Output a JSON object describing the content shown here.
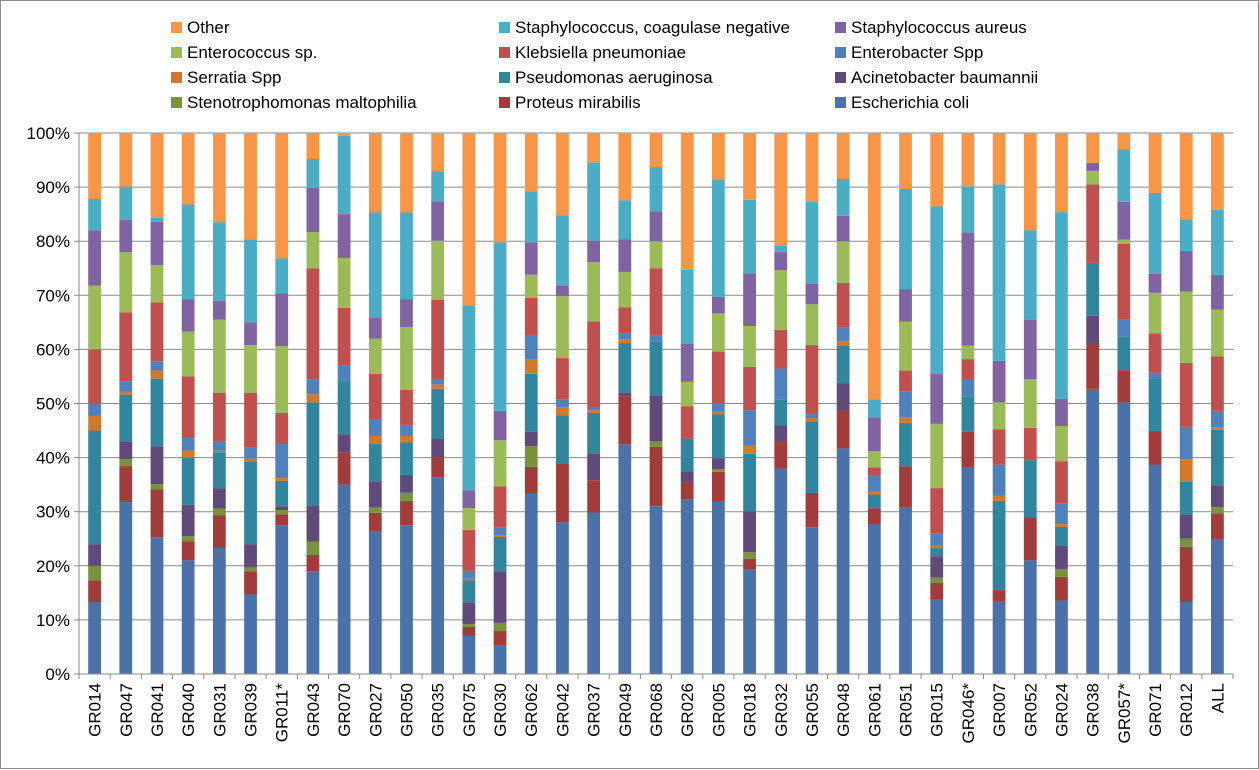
{
  "chart_data": {
    "type": "bar",
    "stacked": "percent",
    "title": "",
    "xlabel": "",
    "ylabel": "",
    "ylim": [
      0,
      100
    ],
    "y_tick_labels": [
      "0%",
      "10%",
      "20%",
      "30%",
      "40%",
      "50%",
      "60%",
      "70%",
      "80%",
      "90%",
      "100%"
    ],
    "grid": "horizontal",
    "legend_position": "top",
    "categories": [
      "GR014",
      "GR047",
      "GR041",
      "GR040",
      "GR031",
      "GR039",
      "GR011*",
      "GR043",
      "GR070",
      "GR027",
      "GR050",
      "GR035",
      "GR075",
      "GR030",
      "GR062",
      "GR042",
      "GR037",
      "GR049",
      "GR068",
      "GR026",
      "GR005",
      "GR018",
      "GR032",
      "GR055",
      "GR048",
      "GR061",
      "GR051",
      "GR015",
      "GR046*",
      "GR007",
      "GR052",
      "GR024",
      "GR038",
      "GR057*",
      "GR071",
      "GR012",
      "ALL"
    ],
    "series": [
      {
        "name": "Escherichia coli",
        "color": "#4A72A8",
        "values": [
          13.3,
          32,
          25.3,
          21,
          23.3,
          14.7,
          27.5,
          19,
          35,
          26.3,
          27.5,
          36,
          7,
          5.2,
          33.3,
          27.7,
          30,
          42,
          31,
          32.3,
          31.5,
          19.2,
          39.7,
          27,
          41.7,
          27.5,
          30.7,
          14,
          38.3,
          13.5,
          21,
          14,
          52.7,
          50.5,
          38.8,
          13.3,
          24.7
        ]
      },
      {
        "name": "Proteus mirabilis",
        "color": "#A23C3A",
        "values": [
          4,
          6.7,
          8.8,
          3.5,
          6,
          4.3,
          2,
          3,
          6,
          3.5,
          4.5,
          3.7,
          1.7,
          2.7,
          5,
          10.8,
          6,
          8.8,
          11,
          3.2,
          5.5,
          2,
          5.3,
          6.3,
          7,
          3,
          7.5,
          3,
          6.7,
          2,
          8,
          4.5,
          8.5,
          6,
          6.2,
          10.2,
          4.8
        ]
      },
      {
        "name": "Stenotrophomonas maltophilia",
        "color": "#77933C",
        "values": [
          2.7,
          1.3,
          1,
          1,
          1.3,
          0.7,
          0.8,
          2.5,
          0,
          1,
          1.5,
          0,
          0.5,
          1.5,
          3.8,
          0,
          0,
          0,
          1,
          0,
          0.5,
          1.2,
          0,
          0,
          0,
          0,
          0,
          1,
          0,
          0,
          0,
          1.5,
          0,
          0,
          0,
          1.5,
          1.2
        ]
      },
      {
        "name": "Acinetobacter baumannii",
        "color": "#5F4A7A",
        "values": [
          4,
          3.3,
          7,
          5.8,
          3.7,
          4.3,
          0.7,
          6.7,
          3.3,
          4.7,
          3.3,
          3.3,
          4,
          9.5,
          2.7,
          0,
          5,
          0.7,
          8.5,
          2,
          2,
          7.5,
          3,
          0,
          5,
          0,
          0,
          4,
          0,
          0,
          0,
          4.5,
          5,
          0,
          0,
          4.5,
          4
        ]
      },
      {
        "name": "Pseudomonas aeruginosa",
        "color": "#31859C",
        "values": [
          21,
          8.7,
          12.5,
          8.7,
          6.7,
          15.3,
          4.7,
          19,
          10,
          7,
          6,
          9.2,
          4,
          6.3,
          10.7,
          8.7,
          7.5,
          9,
          10,
          6,
          8,
          10.6,
          5,
          13.2,
          7,
          2.5,
          8,
          1.5,
          6.6,
          16.5,
          10.5,
          3.5,
          9.8,
          6.2,
          9.8,
          6,
          10.2
        ]
      },
      {
        "name": "Serratia Spp",
        "color": "#D2782A",
        "values": [
          2.7,
          0.5,
          1.5,
          1.3,
          0.3,
          0.5,
          0.5,
          1.5,
          0,
          1.5,
          1.2,
          0.8,
          0.3,
          0.3,
          2.7,
          1.5,
          0.5,
          0.7,
          0,
          0,
          0.5,
          1.5,
          0,
          0.5,
          0.8,
          0.5,
          1,
          0.5,
          0,
          1,
          0,
          0.5,
          0,
          0,
          0,
          4.2,
          0.5
        ]
      },
      {
        "name": "Enterobacter Spp",
        "color": "#4F81BD",
        "values": [
          2.3,
          2,
          1.7,
          2.3,
          1.7,
          2,
          6.3,
          2.7,
          2.7,
          3,
          2,
          1,
          1.5,
          1.5,
          4.3,
          1.5,
          0.5,
          1,
          1,
          0,
          1.5,
          6.5,
          6,
          1,
          2.5,
          3,
          4.8,
          2.3,
          3,
          5.7,
          0,
          4,
          0,
          3.3,
          1,
          6,
          3
        ]
      },
      {
        "name": "Klebsiella pneumoniae",
        "color": "#C0504D",
        "values": [
          10,
          12.8,
          10.9,
          11.4,
          9,
          10.2,
          5.8,
          20.6,
          10.7,
          8.5,
          6.5,
          14.5,
          7.5,
          7.5,
          7,
          7.5,
          16,
          4.8,
          12.5,
          6,
          9.5,
          8,
          7.5,
          12.5,
          8.3,
          1.5,
          3.8,
          8.4,
          3.9,
          6.5,
          6,
          8,
          14.5,
          14,
          7.3,
          11.8,
          10
        ]
      },
      {
        "name": "Enterococcus sp.",
        "color": "#9BBB59",
        "values": [
          11.8,
          11.2,
          6.9,
          8.3,
          13.5,
          8.8,
          12.3,
          6.7,
          9.2,
          6.5,
          11.6,
          10.8,
          4,
          8.5,
          4.3,
          11.3,
          11,
          6.5,
          5,
          4.5,
          7,
          7.5,
          11.5,
          7.5,
          7.7,
          3,
          9,
          12,
          2.5,
          5,
          9,
          6.7,
          2.5,
          0.8,
          7.5,
          13.2,
          8.6
        ]
      },
      {
        "name": "Staphylococcus aureus",
        "color": "#8064A2",
        "values": [
          10.2,
          6,
          8,
          6,
          3.5,
          4.2,
          9.8,
          8.2,
          8.1,
          3.8,
          5.2,
          7.2,
          3.3,
          5.4,
          6,
          2,
          4,
          6,
          5.5,
          7,
          3,
          9.7,
          3.5,
          3.8,
          4.7,
          6.2,
          6,
          9.3,
          21,
          7.7,
          11,
          5.2,
          1.5,
          7,
          3.5,
          7.5,
          6.4
        ]
      },
      {
        "name": "Staphylococcus, coagulase negative",
        "color": "#4BACC6",
        "values": [
          5.8,
          6.2,
          0.7,
          17.5,
          14.5,
          15.3,
          6.4,
          5.3,
          14.5,
          19.5,
          16,
          5.5,
          34,
          31,
          9.4,
          12.8,
          14.5,
          7.1,
          8.2,
          13.7,
          21.5,
          13.5,
          1.3,
          15,
          6.8,
          3.3,
          18.4,
          31.3,
          8.6,
          32.6,
          16.5,
          35.5,
          0,
          9.8,
          15,
          5.8,
          12
        ]
      },
      {
        "name": "Other",
        "color": "#F79646",
        "values": [
          12.2,
          10,
          15.7,
          13.2,
          16.5,
          19.7,
          23.2,
          4.8,
          0.5,
          14.7,
          14.7,
          7,
          31.7,
          20.1,
          10.8,
          15,
          5.5,
          12.3,
          6.3,
          25.3,
          8.5,
          12.3,
          21.7,
          12.7,
          8.5,
          49,
          10.3,
          13.7,
          9.9,
          9.5,
          18,
          15.1,
          5.5,
          3,
          11.1,
          16,
          14.1
        ]
      }
    ],
    "legend_order": [
      "Other",
      "Staphylococcus, coagulase negative",
      "Staphylococcus aureus",
      "Enterococcus sp.",
      "Klebsiella pneumoniae",
      "Enterobacter Spp",
      "Serratia Spp",
      "Pseudomonas aeruginosa",
      "Acinetobacter baumannii",
      "Stenotrophomonas maltophilia",
      "Proteus mirabilis",
      "Escherichia coli"
    ]
  }
}
